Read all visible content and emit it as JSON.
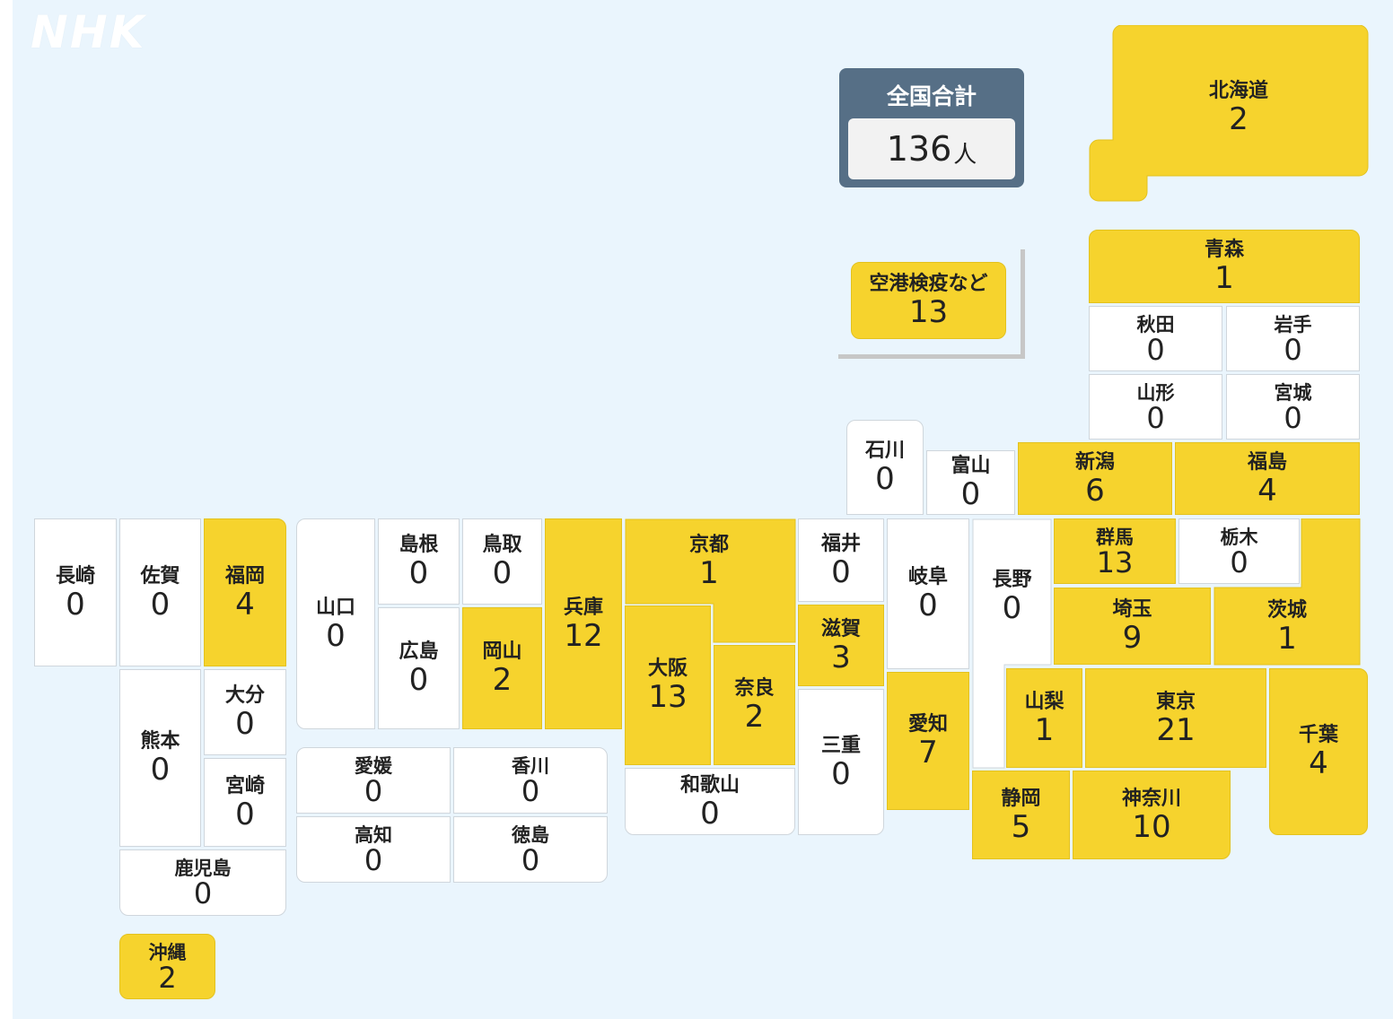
{
  "brand": {
    "logo_text": "NHK"
  },
  "colors": {
    "background": "#eaf5fd",
    "case_fill": "#f6d32d",
    "zero_fill": "#ffffff",
    "total_box": "#566f86"
  },
  "total": {
    "label": "全国合計",
    "value": "136",
    "unit": "人"
  },
  "prefectures": {
    "hokkaido": {
      "name": "北海道",
      "count": "2"
    },
    "aomori": {
      "name": "青森",
      "count": "1"
    },
    "akita": {
      "name": "秋田",
      "count": "0"
    },
    "iwate": {
      "name": "岩手",
      "count": "0"
    },
    "yamagata": {
      "name": "山形",
      "count": "0"
    },
    "miyagi": {
      "name": "宮城",
      "count": "0"
    },
    "niigata": {
      "name": "新潟",
      "count": "6"
    },
    "fukushima": {
      "name": "福島",
      "count": "4"
    },
    "ishikawa": {
      "name": "石川",
      "count": "0"
    },
    "toyama": {
      "name": "富山",
      "count": "0"
    },
    "gunma": {
      "name": "群馬",
      "count": "13"
    },
    "tochigi": {
      "name": "栃木",
      "count": "0"
    },
    "ibaraki": {
      "name": "茨城",
      "count": "1"
    },
    "saitama": {
      "name": "埼玉",
      "count": "9"
    },
    "chiba": {
      "name": "千葉",
      "count": "4"
    },
    "tokyo": {
      "name": "東京",
      "count": "21"
    },
    "kanagawa": {
      "name": "神奈川",
      "count": "10"
    },
    "yamanashi": {
      "name": "山梨",
      "count": "1"
    },
    "nagano": {
      "name": "長野",
      "count": "0"
    },
    "shizuoka": {
      "name": "静岡",
      "count": "5"
    },
    "gifu": {
      "name": "岐阜",
      "count": "0"
    },
    "aichi": {
      "name": "愛知",
      "count": "7"
    },
    "fukui": {
      "name": "福井",
      "count": "0"
    },
    "shiga": {
      "name": "滋賀",
      "count": "3"
    },
    "mie": {
      "name": "三重",
      "count": "0"
    },
    "kyoto": {
      "name": "京都",
      "count": "1"
    },
    "osaka": {
      "name": "大阪",
      "count": "13"
    },
    "nara": {
      "name": "奈良",
      "count": "2"
    },
    "wakayama": {
      "name": "和歌山",
      "count": "0"
    },
    "hyogo": {
      "name": "兵庫",
      "count": "12"
    },
    "tottori": {
      "name": "鳥取",
      "count": "0"
    },
    "shimane": {
      "name": "島根",
      "count": "0"
    },
    "okayama": {
      "name": "岡山",
      "count": "2"
    },
    "hiroshima": {
      "name": "広島",
      "count": "0"
    },
    "yamaguchi": {
      "name": "山口",
      "count": "0"
    },
    "kagawa": {
      "name": "香川",
      "count": "0"
    },
    "ehime": {
      "name": "愛媛",
      "count": "0"
    },
    "tokushima": {
      "name": "徳島",
      "count": "0"
    },
    "kochi": {
      "name": "高知",
      "count": "0"
    },
    "fukuoka": {
      "name": "福岡",
      "count": "4"
    },
    "saga": {
      "name": "佐賀",
      "count": "0"
    },
    "nagasaki": {
      "name": "長崎",
      "count": "0"
    },
    "oita": {
      "name": "大分",
      "count": "0"
    },
    "kumamoto": {
      "name": "熊本",
      "count": "0"
    },
    "miyazaki": {
      "name": "宮崎",
      "count": "0"
    },
    "kagoshima": {
      "name": "鹿児島",
      "count": "0"
    },
    "okinawa": {
      "name": "沖縄",
      "count": "2"
    },
    "airport": {
      "name": "空港検疫など",
      "count": "13"
    }
  }
}
